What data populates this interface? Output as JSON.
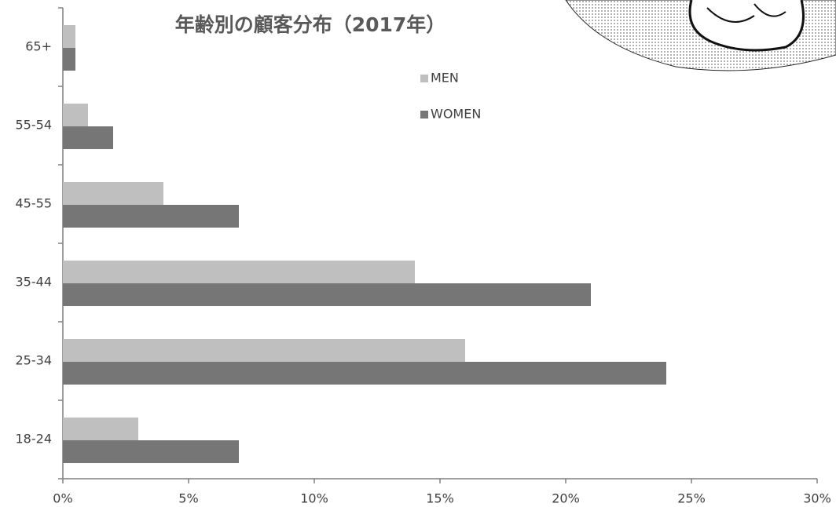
{
  "chart_data": {
    "type": "bar",
    "orientation": "horizontal",
    "title": "年齢別の顧客分布（2017年）",
    "categories": [
      "18-24",
      "25-34",
      "35-44",
      "45-55",
      "55-54",
      "65+"
    ],
    "series": [
      {
        "name": "MEN",
        "color": "#bfbfbf",
        "values": [
          3,
          16,
          14,
          4,
          1,
          0.5
        ]
      },
      {
        "name": "WOMEN",
        "color": "#767676",
        "values": [
          7,
          24,
          21,
          7,
          2,
          0.5
        ]
      }
    ],
    "xlim": [
      0,
      30
    ],
    "xticks": [
      {
        "value": 0,
        "label": "0%"
      },
      {
        "value": 5,
        "label": "5%"
      },
      {
        "value": 10,
        "label": "10%"
      },
      {
        "value": 15,
        "label": "15%"
      },
      {
        "value": 20,
        "label": "20%"
      },
      {
        "value": 25,
        "label": "25%"
      },
      {
        "value": 30,
        "label": "30%"
      }
    ],
    "grid": false,
    "legend": "top-right"
  }
}
